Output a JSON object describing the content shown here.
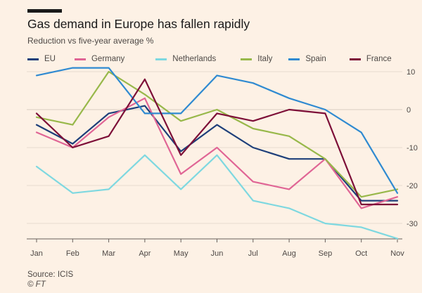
{
  "header": {
    "title": "Gas demand in Europe has fallen rapidly",
    "subtitle": "Reduction vs five-year average %"
  },
  "footer": {
    "source": "Source: ICIS",
    "credit": "© FT"
  },
  "chart_data": {
    "type": "line",
    "title": "Gas demand in Europe has fallen rapidly",
    "subtitle": "Reduction vs five-year average %",
    "xlabel": "",
    "ylabel": "",
    "categories": [
      "Jan",
      "Feb",
      "Mar",
      "Apr",
      "May",
      "Jun",
      "Jul",
      "Aug",
      "Sep",
      "Oct",
      "Nov"
    ],
    "ylim": [
      -34,
      11
    ],
    "yticks": [
      10,
      0,
      -10,
      -20,
      -30
    ],
    "yaxis_position": "right",
    "grid": true,
    "legend_position": "top",
    "series": [
      {
        "name": "EU",
        "color": "#1e3f7a",
        "values": [
          -4,
          -9,
          -1,
          1,
          -11,
          -4,
          -10,
          -13,
          -13,
          -24,
          -24
        ]
      },
      {
        "name": "Germany",
        "color": "#e06595",
        "values": [
          -6,
          -10,
          -2,
          3,
          -17,
          -10,
          -19,
          -21,
          -13,
          -26,
          -23
        ]
      },
      {
        "name": "Netherlands",
        "color": "#7ed8e0",
        "values": [
          -15,
          -22,
          -21,
          -12,
          -21,
          -12,
          -24,
          -26,
          -30,
          -31,
          -34
        ]
      },
      {
        "name": "Italy",
        "color": "#98b84a",
        "values": [
          -2,
          -4,
          10,
          4,
          -3,
          0,
          -5,
          -7,
          -13,
          -23,
          -21
        ]
      },
      {
        "name": "Spain",
        "color": "#2f8ad1",
        "values": [
          9,
          11,
          11,
          -1,
          -1,
          9,
          7,
          3,
          0,
          -6,
          -22
        ]
      },
      {
        "name": "France",
        "color": "#7d0f38",
        "values": [
          -1,
          -10,
          -7,
          8,
          -12,
          -1,
          -3,
          0,
          -1,
          -25,
          -25
        ]
      }
    ]
  }
}
